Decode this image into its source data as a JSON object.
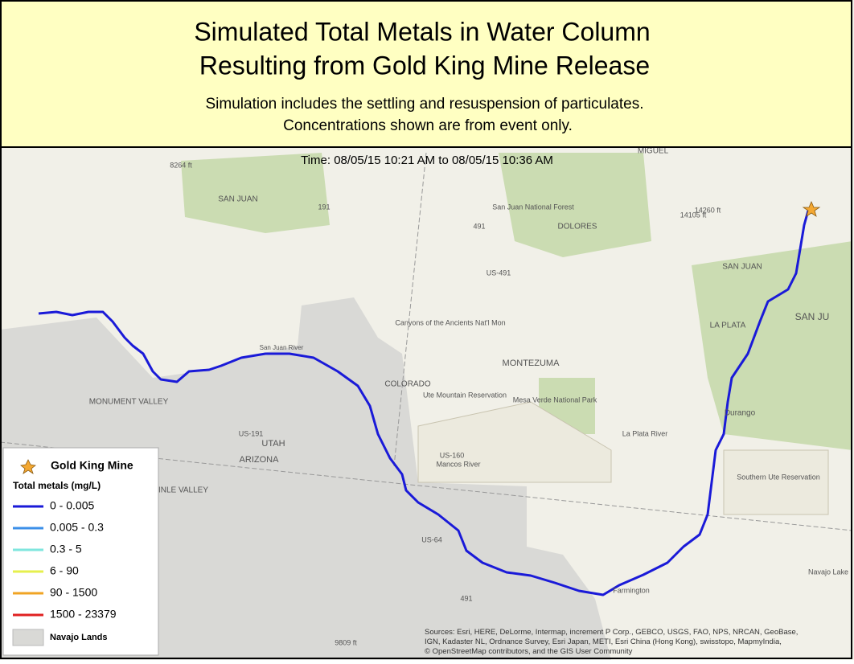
{
  "header": {
    "title": [
      "Simulated Total Metals in Water Column",
      "Resulting from Gold King Mine Release"
    ],
    "subtitle": [
      "Simulation includes the settling and resuspension of particulates.",
      "Concentrations shown are from event only."
    ]
  },
  "map": {
    "time_label": "Time: 08/05/15 10:21 AM to 08/05/15 10:36 AM",
    "labels": [
      "MIGUEL",
      "8264 ft",
      "SAN JUAN",
      "San Juan National Forest",
      "DOLORES",
      "14105 ft",
      "14260 ft",
      "SAN JUAN",
      "191",
      "491",
      "US-491",
      "Canyons of the Ancients Nat'l Mon",
      "LA PLATA",
      "SAN JU",
      "San Juan River",
      "COLORADO",
      "MONTEZUMA",
      "Ute Mountain Reservation",
      "Mesa Verde National Park",
      "Durango",
      "La Plata River",
      "MONUMENT VALLEY",
      "UTAH",
      "ARIZONA",
      "US-191",
      "US-160",
      "Mancos River",
      "Southern Ute Reservation",
      "INLE VALLEY",
      "US-64",
      "491",
      "Farmington",
      "Navajo Lake",
      "9809 ft"
    ],
    "sources": "Sources: Esri, HERE, DeLorme, Intermap, increment P Corp., GEBCO, USGS, FAO, NPS, NRCAN, GeoBase, IGN, Kadaster NL, Ordnance Survey, Esri Japan, METI, Esri China (Hong Kong), swisstopo, MapmyIndia, © OpenStreetMap contributors, and the GIS User Community"
  },
  "legend": {
    "site": "Gold King Mine",
    "heading": "Total metals (mg/L)",
    "items": [
      {
        "label": "0 - 0.005",
        "color": "#1a1ad8"
      },
      {
        "label": "0.005 - 0.3",
        "color": "#3b8fe8"
      },
      {
        "label": "0.3 - 5",
        "color": "#7fe6de"
      },
      {
        "label": "6 - 90",
        "color": "#e6f04e"
      },
      {
        "label": "90 - 1500",
        "color": "#f0a424"
      },
      {
        "label": "1500 - 23379",
        "color": "#e02222"
      }
    ],
    "area": "Navajo Lands"
  }
}
